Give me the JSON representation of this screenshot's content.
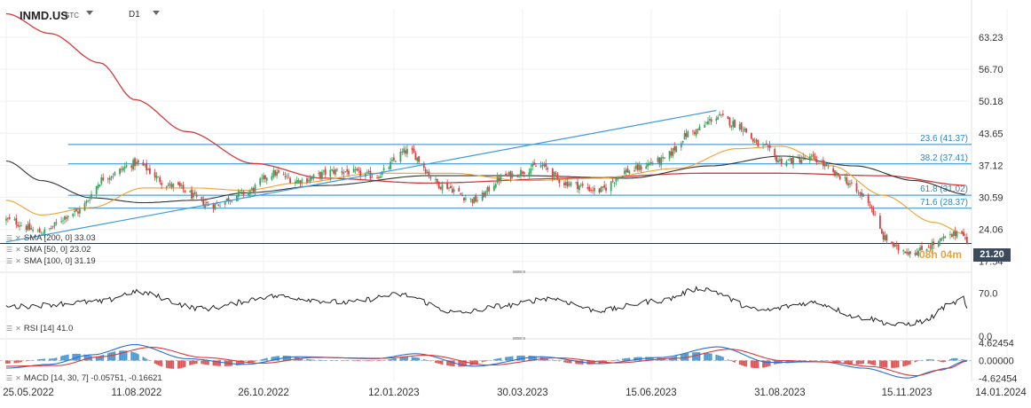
{
  "header": {
    "symbol": "INMD.US",
    "symbol_suffix": "STC",
    "timeframe": "D1"
  },
  "indicators": {
    "sma200": "SMA [200, 0] 33.03",
    "sma50": "SMA [50, 0] 23.02",
    "sma100": "SMA [100, 0] 31.19",
    "rsi": "RSI [14] 41.0",
    "macd": "MACD [14, 30, 7] -0.05751, -0.16621"
  },
  "countdown": "08h 04m",
  "last_price_label": "21.20",
  "colors": {
    "up": "#3ea361",
    "down": "#d94242",
    "fib": "#2a88c4",
    "trend": "#3b9be3",
    "sma200": "#d23b3b",
    "sma50": "#f0a030",
    "sma100": "#333333",
    "sma200_mid": "#5a56c8",
    "rsi_line": "#222222",
    "macd_line": "#2a6fd1",
    "signal_line": "#d63a3a"
  },
  "chart_data": {
    "type": "candlestick",
    "price_axis": {
      "ticks": [
        63.23,
        56.7,
        50.18,
        43.65,
        37.12,
        30.59,
        24.06,
        17.54
      ],
      "tick_labels": [
        "63.23",
        "56.70",
        "50.18",
        "43.65",
        "37.12",
        "30.59",
        "24.06",
        "17.54"
      ],
      "range": [
        15.5,
        69.0
      ]
    },
    "x_axis": {
      "tick_labels": [
        "25.05.2022",
        "11.08.2022",
        "26.10.2022",
        "12.01.2023",
        "30.03.2023",
        "15.06.2023",
        "31.08.2023",
        "15.11.2023",
        "14.01.2024"
      ],
      "range": [
        "2022-05-25",
        "2024-01-14"
      ]
    },
    "fibonacci_levels": [
      {
        "label": "23.6 (41.37)",
        "value": 41.37
      },
      {
        "label": "38.2 (37.41)",
        "value": 37.41
      },
      {
        "label": "61.8 (31.02)",
        "value": 31.02
      },
      {
        "label": "71.6 (28.37)",
        "value": 28.37
      }
    ],
    "support_level": 21.2,
    "trendline": {
      "start": [
        "2022-05-25",
        21.5
      ],
      "end": [
        "2023-07-24",
        48.3
      ]
    },
    "close_anchors": [
      [
        "2022-05-25",
        26.0
      ],
      [
        "2022-06-15",
        23.5
      ],
      [
        "2022-07-05",
        27.5
      ],
      [
        "2022-07-25",
        35.0
      ],
      [
        "2022-08-10",
        37.5
      ],
      [
        "2022-09-01",
        33.0
      ],
      [
        "2022-09-25",
        29.0
      ],
      [
        "2022-10-15",
        31.5
      ],
      [
        "2022-11-01",
        35.5
      ],
      [
        "2022-11-15",
        34.0
      ],
      [
        "2022-12-10",
        36.0
      ],
      [
        "2023-01-01",
        35.0
      ],
      [
        "2023-01-20",
        40.0
      ],
      [
        "2023-02-10",
        33.0
      ],
      [
        "2023-03-01",
        30.0
      ],
      [
        "2023-03-20",
        35.0
      ],
      [
        "2023-04-10",
        37.0
      ],
      [
        "2023-04-25",
        33.5
      ],
      [
        "2023-05-15",
        32.0
      ],
      [
        "2023-06-01",
        36.0
      ],
      [
        "2023-06-20",
        38.0
      ],
      [
        "2023-07-10",
        44.0
      ],
      [
        "2023-07-25",
        47.0
      ],
      [
        "2023-08-05",
        45.5
      ],
      [
        "2023-08-20",
        41.0
      ],
      [
        "2023-09-01",
        38.0
      ],
      [
        "2023-09-20",
        38.5
      ],
      [
        "2023-10-05",
        35.0
      ],
      [
        "2023-10-20",
        31.0
      ],
      [
        "2023-11-03",
        22.0
      ],
      [
        "2023-11-10",
        20.0
      ],
      [
        "2023-11-20",
        19.5
      ],
      [
        "2023-12-01",
        21.0
      ],
      [
        "2023-12-10",
        22.5
      ],
      [
        "2023-12-18",
        24.0
      ],
      [
        "2023-12-21",
        21.2
      ]
    ],
    "sma200_anchors": [
      [
        "2022-05-25",
        68.0
      ],
      [
        "2022-06-20",
        64.0
      ],
      [
        "2022-07-20",
        58.0
      ],
      [
        "2022-08-10",
        50.5
      ],
      [
        "2022-09-10",
        44.0
      ],
      [
        "2022-10-20",
        37.5
      ],
      [
        "2022-12-01",
        34.5
      ],
      [
        "2023-02-01",
        33.5
      ],
      [
        "2023-05-01",
        34.5
      ],
      [
        "2023-07-15",
        35.5
      ],
      [
        "2023-09-01",
        35.5
      ],
      [
        "2023-11-01",
        35.0
      ],
      [
        "2023-12-21",
        33.03
      ]
    ],
    "sma50_anchors": [
      [
        "2022-05-25",
        30.0
      ],
      [
        "2022-06-15",
        27.0
      ],
      [
        "2022-07-15",
        28.5
      ],
      [
        "2022-08-15",
        32.5
      ],
      [
        "2022-09-15",
        32.5
      ],
      [
        "2022-10-15",
        32.0
      ],
      [
        "2022-11-15",
        33.5
      ],
      [
        "2023-01-01",
        35.5
      ],
      [
        "2023-02-15",
        35.5
      ],
      [
        "2023-04-01",
        34.0
      ],
      [
        "2023-05-15",
        34.5
      ],
      [
        "2023-07-01",
        36.5
      ],
      [
        "2023-08-05",
        40.5
      ],
      [
        "2023-09-01",
        41.0
      ],
      [
        "2023-10-01",
        37.0
      ],
      [
        "2023-11-01",
        31.0
      ],
      [
        "2023-12-01",
        25.5
      ],
      [
        "2023-12-21",
        23.02
      ]
    ],
    "sma100_anchors": [
      [
        "2022-05-25",
        38.0
      ],
      [
        "2022-06-15",
        34.0
      ],
      [
        "2022-07-15",
        30.5
      ],
      [
        "2022-08-15",
        29.5
      ],
      [
        "2022-09-15",
        30.0
      ],
      [
        "2022-10-15",
        31.5
      ],
      [
        "2022-12-01",
        33.0
      ],
      [
        "2023-02-01",
        35.0
      ],
      [
        "2023-04-01",
        35.0
      ],
      [
        "2023-06-01",
        34.5
      ],
      [
        "2023-07-20",
        37.0
      ],
      [
        "2023-09-01",
        39.0
      ],
      [
        "2023-10-15",
        37.0
      ],
      [
        "2023-11-20",
        34.0
      ],
      [
        "2023-12-21",
        31.19
      ]
    ],
    "rsi": {
      "ticks": [
        70.0,
        0.0
      ],
      "tick_labels": [
        "70.0",
        "0.0"
      ],
      "range": [
        0,
        100
      ],
      "anchors": [
        [
          "2022-05-25",
          48
        ],
        [
          "2022-07-20",
          56
        ],
        [
          "2022-08-10",
          72
        ],
        [
          "2022-09-20",
          45
        ],
        [
          "2022-11-01",
          65
        ],
        [
          "2022-12-15",
          55
        ],
        [
          "2023-01-15",
          68
        ],
        [
          "2023-02-20",
          38
        ],
        [
          "2023-03-20",
          50
        ],
        [
          "2023-04-15",
          62
        ],
        [
          "2023-05-15",
          42
        ],
        [
          "2023-06-20",
          58
        ],
        [
          "2023-07-15",
          78
        ],
        [
          "2023-08-20",
          42
        ],
        [
          "2023-09-20",
          55
        ],
        [
          "2023-10-20",
          30
        ],
        [
          "2023-11-10",
          18
        ],
        [
          "2023-11-25",
          24
        ],
        [
          "2023-12-10",
          50
        ],
        [
          "2023-12-19",
          62
        ],
        [
          "2023-12-21",
          41
        ]
      ]
    },
    "macd": {
      "ticks": [
        4.62454,
        0.0,
        -4.62454
      ],
      "tick_labels": [
        "4.62454",
        "0.00000",
        "-4.62454"
      ],
      "range": [
        -5.5,
        5.5
      ],
      "macd_anchors": [
        [
          "2022-05-25",
          -2.0
        ],
        [
          "2022-06-20",
          -1.0
        ],
        [
          "2022-07-15",
          1.5
        ],
        [
          "2022-08-10",
          4.2
        ],
        [
          "2022-09-10",
          0.5
        ],
        [
          "2022-10-15",
          -1.0
        ],
        [
          "2022-11-15",
          1.0
        ],
        [
          "2023-01-01",
          0.5
        ],
        [
          "2023-01-25",
          1.8
        ],
        [
          "2023-03-01",
          -1.5
        ],
        [
          "2023-04-10",
          1.0
        ],
        [
          "2023-05-15",
          -0.8
        ],
        [
          "2023-06-20",
          0.8
        ],
        [
          "2023-07-25",
          3.6
        ],
        [
          "2023-08-25",
          -0.5
        ],
        [
          "2023-09-25",
          -0.3
        ],
        [
          "2023-10-20",
          -2.0
        ],
        [
          "2023-11-15",
          -4.6
        ],
        [
          "2023-12-05",
          -2.5
        ],
        [
          "2023-12-21",
          -0.05751
        ]
      ],
      "signal_anchors": [
        [
          "2022-05-25",
          -1.5
        ],
        [
          "2022-06-25",
          -1.3
        ],
        [
          "2022-07-20",
          1.0
        ],
        [
          "2022-08-20",
          3.5
        ],
        [
          "2022-09-20",
          0.8
        ],
        [
          "2022-10-25",
          -0.7
        ],
        [
          "2022-11-25",
          0.8
        ],
        [
          "2023-01-05",
          0.6
        ],
        [
          "2023-02-01",
          1.4
        ],
        [
          "2023-03-10",
          -1.2
        ],
        [
          "2023-04-20",
          0.7
        ],
        [
          "2023-05-25",
          -0.6
        ],
        [
          "2023-06-30",
          0.6
        ],
        [
          "2023-08-01",
          3.0
        ],
        [
          "2023-09-01",
          0.0
        ],
        [
          "2023-09-30",
          -0.4
        ],
        [
          "2023-10-25",
          -1.6
        ],
        [
          "2023-11-20",
          -4.0
        ],
        [
          "2023-12-10",
          -2.0
        ],
        [
          "2023-12-21",
          -0.16621
        ]
      ]
    }
  }
}
